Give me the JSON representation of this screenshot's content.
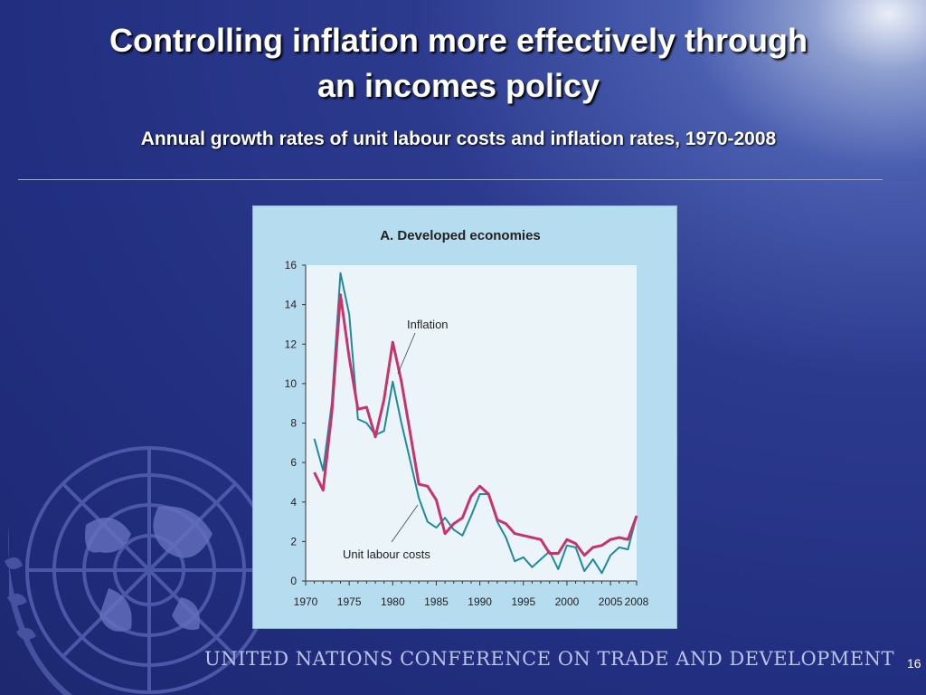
{
  "slide": {
    "title_line1": "Controlling inflation more effectively through",
    "title_line2": "an incomes policy",
    "subtitle": "Annual growth rates of unit labour costs and inflation rates, 1970-2008",
    "footer": "UNITED NATIONS CONFERENCE ON TRADE AND DEVELOPMENT",
    "page_number": "16"
  },
  "colors": {
    "inflation": "#c8336b",
    "unit_labour_costs": "#1f8a9e",
    "panel_bg": "#b6dcef",
    "plot_bg": "#eaf4f9"
  },
  "chart_data": {
    "type": "line",
    "title": "A. Developed economies",
    "xlabel": "",
    "ylabel": "",
    "xlim": [
      1970,
      2008
    ],
    "ylim": [
      0,
      16
    ],
    "yticks": [
      0,
      2,
      4,
      6,
      8,
      10,
      12,
      14,
      16
    ],
    "xticks": [
      1970,
      1975,
      1980,
      1985,
      1990,
      1995,
      2000,
      2005,
      2008
    ],
    "x": [
      1971,
      1972,
      1973,
      1974,
      1975,
      1976,
      1977,
      1978,
      1979,
      1980,
      1981,
      1982,
      1983,
      1984,
      1985,
      1986,
      1987,
      1988,
      1989,
      1990,
      1991,
      1992,
      1993,
      1994,
      1995,
      1996,
      1997,
      1998,
      1999,
      2000,
      2001,
      2002,
      2003,
      2004,
      2005,
      2006,
      2007,
      2008
    ],
    "series": [
      {
        "name": "Inflation",
        "values": [
          5.5,
          4.6,
          8.5,
          14.5,
          11.3,
          8.7,
          8.8,
          7.3,
          9.2,
          12.1,
          10.1,
          7.5,
          4.9,
          4.8,
          4.1,
          2.4,
          2.9,
          3.2,
          4.3,
          4.8,
          4.4,
          3.1,
          2.9,
          2.4,
          2.3,
          2.2,
          2.1,
          1.4,
          1.4,
          2.1,
          1.9,
          1.3,
          1.7,
          1.8,
          2.1,
          2.2,
          2.1,
          3.3
        ]
      },
      {
        "name": "Unit labour costs",
        "values": [
          7.2,
          5.6,
          9.0,
          15.6,
          13.5,
          8.2,
          8.0,
          7.4,
          7.6,
          10.1,
          8.0,
          6.1,
          4.2,
          3.0,
          2.7,
          3.2,
          2.6,
          2.3,
          3.3,
          4.4,
          4.4,
          3.0,
          2.2,
          1.0,
          1.2,
          0.7,
          1.1,
          1.5,
          0.6,
          1.8,
          1.7,
          0.5,
          1.1,
          0.4,
          1.3,
          1.7,
          1.6,
          3.3
        ]
      }
    ],
    "annotations": [
      "Inflation",
      "Unit labour costs"
    ]
  }
}
